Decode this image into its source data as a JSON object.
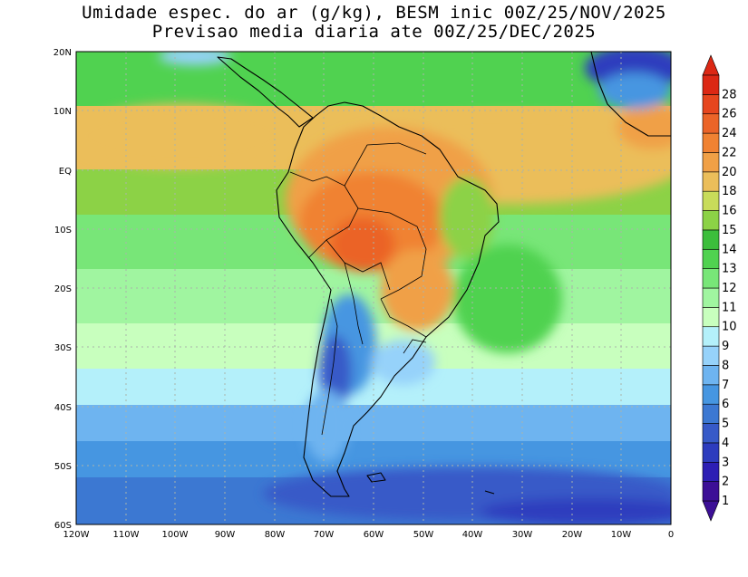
{
  "title": {
    "line1": "Umidade espec. do ar (g/kg), BESM inic 00Z/25/NOV/2025",
    "line2": "Previsao media diaria ate 00Z/25/DEC/2025"
  },
  "map": {
    "lon_range": [
      -120,
      0
    ],
    "lat_range": [
      -60,
      20
    ],
    "lon_ticks": [
      "120W",
      "110W",
      "100W",
      "90W",
      "80W",
      "70W",
      "60W",
      "50W",
      "40W",
      "30W",
      "20W",
      "10W",
      "0"
    ],
    "lat_ticks": [
      "20N",
      "10N",
      "EQ",
      "10S",
      "20S",
      "30S",
      "40S",
      "50S",
      "60S"
    ],
    "grid": true
  },
  "colorbar": {
    "labels": [
      "1",
      "2",
      "3",
      "4",
      "5",
      "6",
      "7",
      "8",
      "9",
      "10",
      "11",
      "12",
      "13",
      "14",
      "15",
      "16",
      "18",
      "20",
      "22",
      "24",
      "26",
      "28"
    ],
    "colors": [
      "#3c0f96",
      "#2d1eb4",
      "#2d3cbe",
      "#375ac8",
      "#3c78d2",
      "#4696e1",
      "#6eb4f0",
      "#96d2fa",
      "#b4f0fa",
      "#c8ffbe",
      "#a0f5a0",
      "#78e678",
      "#50d250",
      "#3cbe3c",
      "#8cd246",
      "#c8dc5a",
      "#ebbe5a",
      "#f0a046",
      "#f08232",
      "#eb6428",
      "#e6461e",
      "#dc2814"
    ]
  }
}
